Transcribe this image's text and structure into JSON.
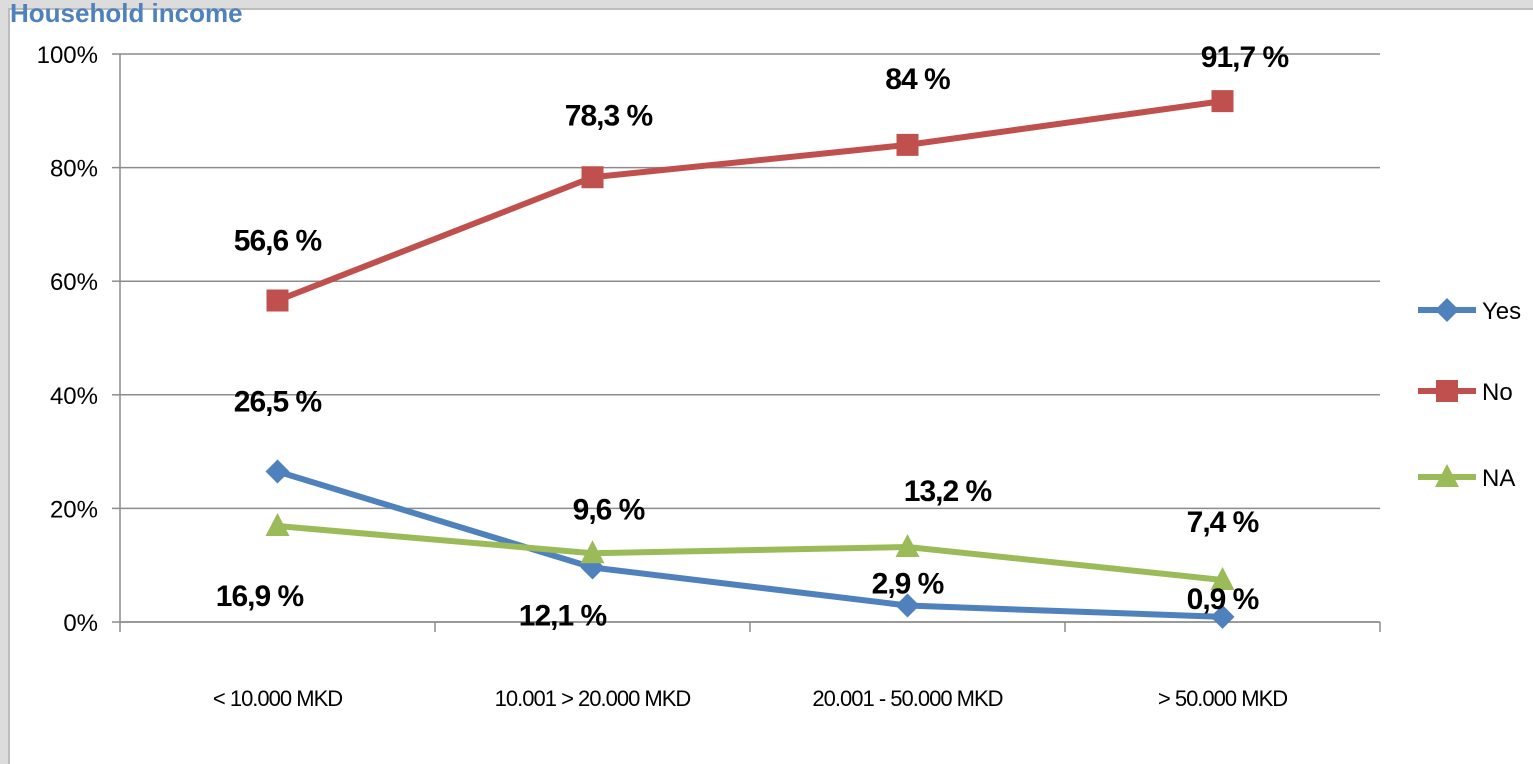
{
  "chart_data": {
    "type": "line",
    "title": "Household income",
    "categories": [
      "< 10.000 MKD",
      "10.001 > 20.000 MKD",
      "20.001 - 50.000 MKD",
      "> 50.000 MKD"
    ],
    "ylim": [
      0,
      100
    ],
    "yticks": [
      0,
      20,
      40,
      60,
      80,
      100
    ],
    "ytick_labels": [
      "0%",
      "20%",
      "40%",
      "60%",
      "80%",
      "100%"
    ],
    "grid": true,
    "legend_position": "right",
    "series": [
      {
        "name": "Yes",
        "color": "#4f81bd",
        "marker": "diamond",
        "values": [
          26.5,
          9.6,
          2.9,
          0.9
        ],
        "labels": [
          "26,5 %",
          "9,6 %",
          "2,9 %",
          "0,9 %"
        ]
      },
      {
        "name": "No",
        "color": "#c0504d",
        "marker": "square",
        "values": [
          56.6,
          78.3,
          84,
          91.7
        ],
        "labels": [
          "56,6 %",
          "78,3 %",
          "84 %",
          "91,7 %"
        ]
      },
      {
        "name": "NA",
        "color": "#9bbb59",
        "marker": "triangle",
        "values": [
          16.9,
          12.1,
          13.2,
          7.4
        ],
        "labels": [
          "16,9 %",
          "12,1 %",
          "13,2 %",
          "7,4 %"
        ]
      }
    ]
  }
}
